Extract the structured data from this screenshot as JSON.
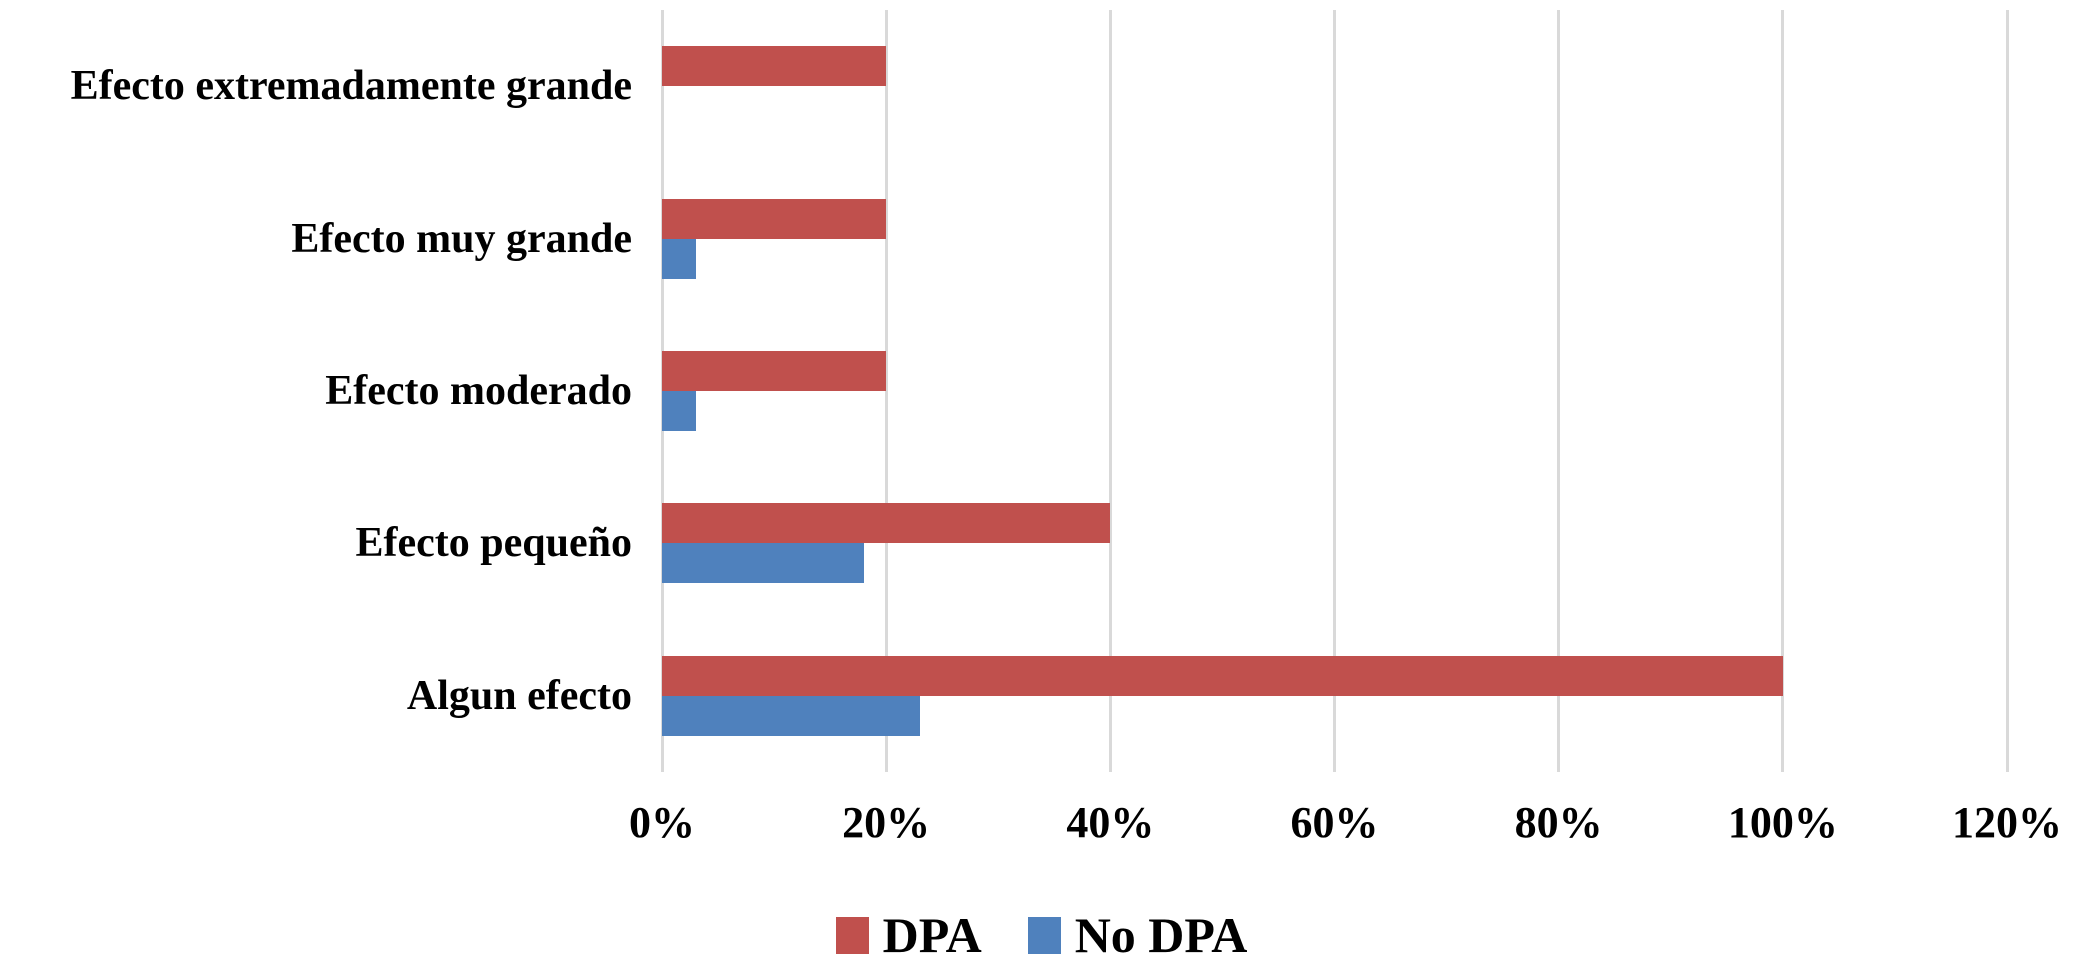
{
  "chart_data": {
    "type": "bar",
    "orientation": "horizontal",
    "title": "",
    "categories": [
      "Efecto extremadamente grande",
      "Efecto muy grande",
      "Efecto moderado",
      "Efecto pequeño",
      "Algun efecto"
    ],
    "series": [
      {
        "name": "DPA",
        "color": "#C0504D",
        "values": [
          20,
          20,
          20,
          40,
          100
        ]
      },
      {
        "name": "No DPA",
        "color": "#4F81BD",
        "values": [
          0,
          3,
          3,
          18,
          23
        ]
      }
    ],
    "x_axis": {
      "unit": "%",
      "min": 0,
      "max": 120,
      "tick_step": 20,
      "tick_labels": [
        "0%",
        "20%",
        "40%",
        "60%",
        "80%",
        "100%",
        "120%"
      ]
    },
    "legend": {
      "position": "bottom",
      "entries": [
        {
          "label": "DPA",
          "color": "#C0504D"
        },
        {
          "label": "No DPA",
          "color": "#4F81BD"
        }
      ]
    },
    "grid": true,
    "gridline_color": "#D9D9D9",
    "background_color": "#FFFFFF"
  }
}
